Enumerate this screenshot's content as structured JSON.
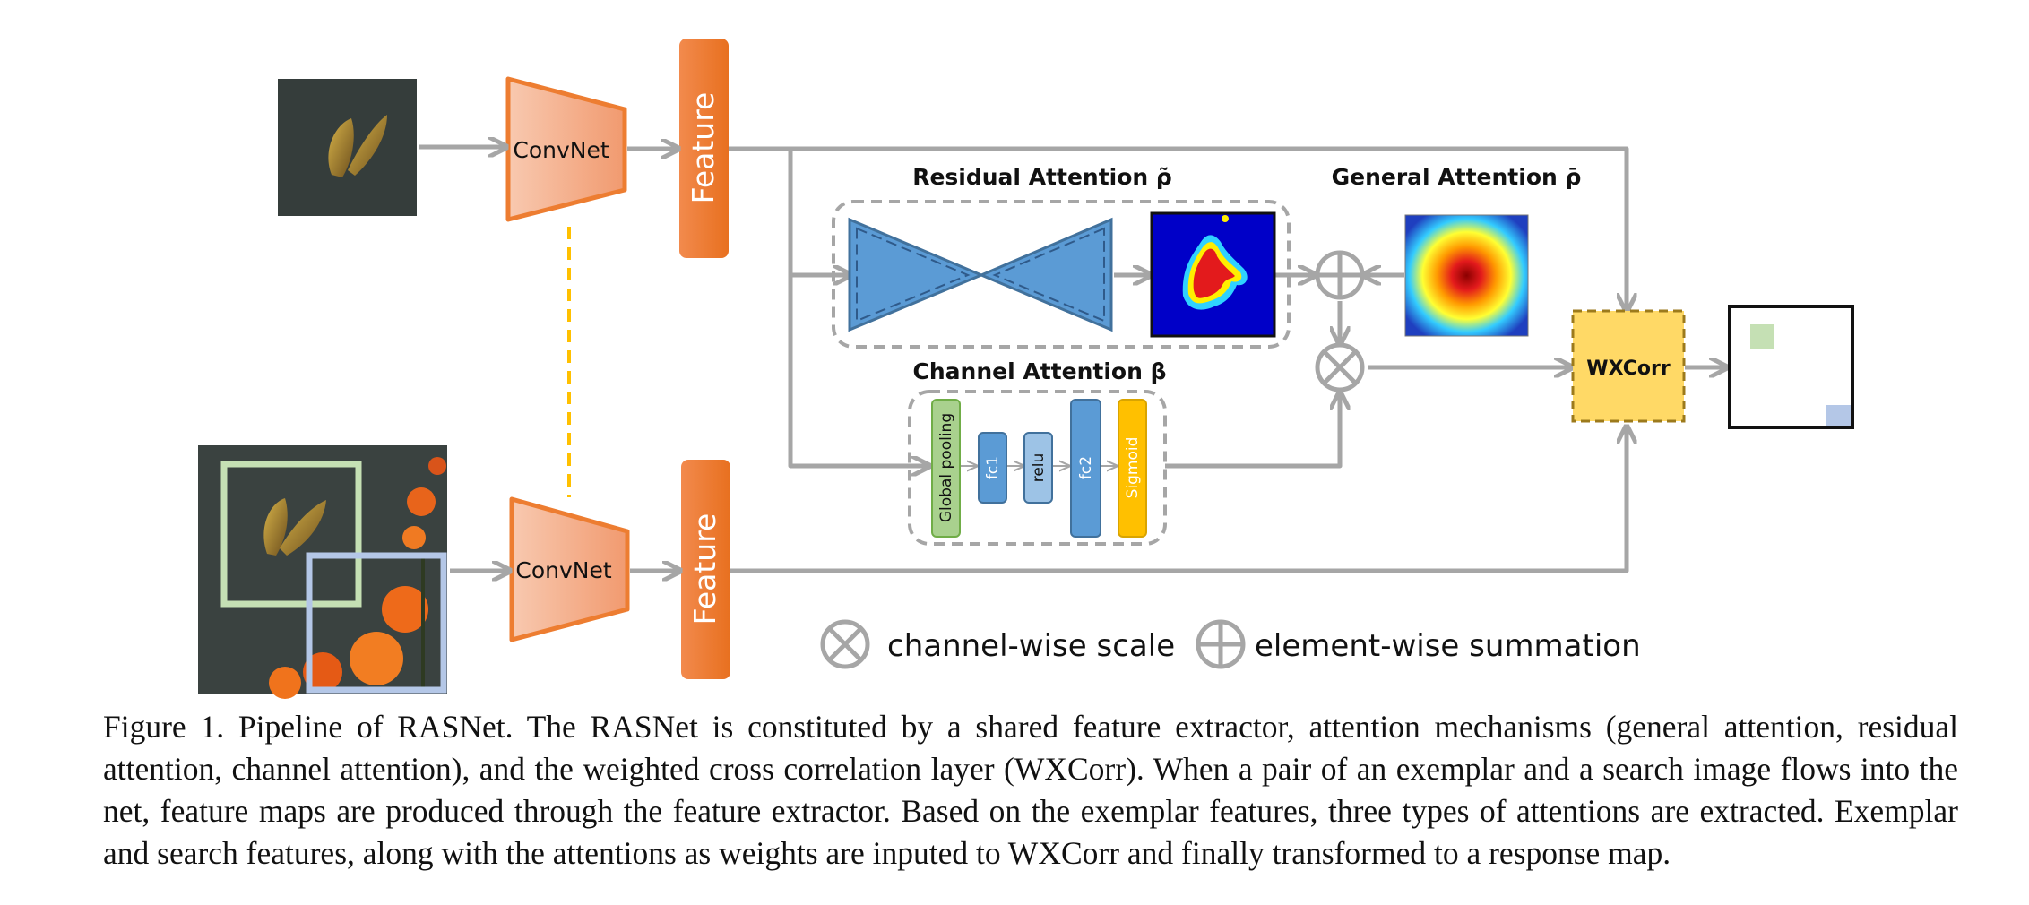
{
  "diagram": {
    "convnet_label": "ConvNet",
    "feature_label": "Feature",
    "residual_attention_title": "Residual Attention ρ̃",
    "general_attention_title": "General Attention ρ̄",
    "channel_attention_title": "Channel Attention β",
    "global_pooling_label": "Global pooling",
    "fc1_label": "fc1",
    "relu_label": "relu",
    "fc2_label": "fc2",
    "sigmoid_label": "Sigmoid",
    "wxcorr_label": "WXCorr",
    "legend_scale_label": "channel-wise scale",
    "legend_sum_label": "element-wise summation",
    "colors": {
      "arrow": "#a6a6a6",
      "convnet_fill": "#f4b08f",
      "convnet_stroke": "#ed7d31",
      "feature": "#ed7d31",
      "hourglass": "#5b9bd5",
      "wxcorr": "#ffd966",
      "exemplar_box": "#c5e0b4",
      "search_box": "#b4c7e7"
    }
  },
  "caption": "Figure 1. Pipeline of RASNet. The RASNet is constituted by a shared feature extractor, attention mechanisms (general attention, residual attention, channel attention), and the weighted cross correlation layer (WXCorr). When a pair of an exemplar and a search image flows into the net, feature maps are produced through the feature extractor. Based on the exemplar features, three types of attentions are extracted. Exemplar and search features, along with the attentions as weights are inputed to WXCorr and finally transformed to a response map."
}
